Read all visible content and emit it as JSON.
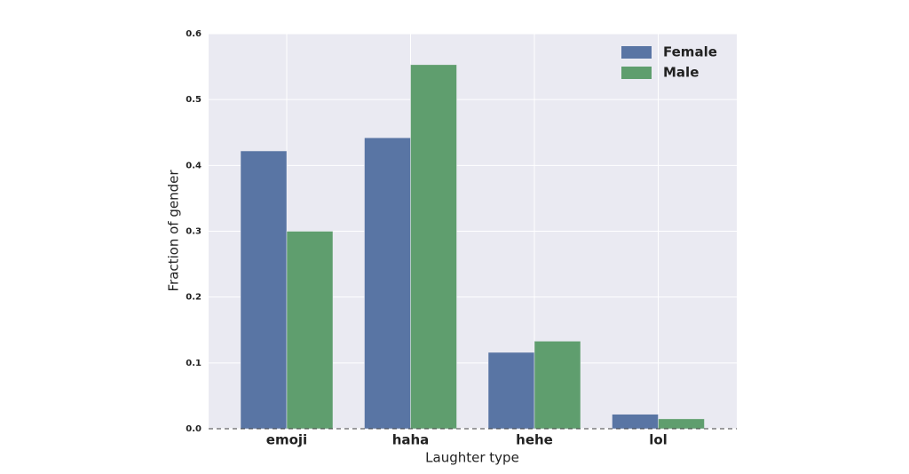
{
  "chart_data": {
    "type": "bar",
    "x_label": "Laughter type",
    "y_label": "Fraction of gender",
    "categories": [
      "emoji",
      "haha",
      "hehe",
      "lol"
    ],
    "series": [
      {
        "name": "Female",
        "color": "#5975a4",
        "values": [
          0.422,
          0.442,
          0.116,
          0.022
        ]
      },
      {
        "name": "Male",
        "color": "#5f9e6e",
        "values": [
          0.3,
          0.553,
          0.133,
          0.015
        ]
      }
    ],
    "ylim": [
      0,
      0.6
    ],
    "yticks": [
      {
        "value": 0,
        "label": "0.0"
      },
      0.1,
      0.2,
      0.3,
      0.4,
      0.5,
      0.6
    ],
    "grid": true,
    "legend": "upper right"
  }
}
